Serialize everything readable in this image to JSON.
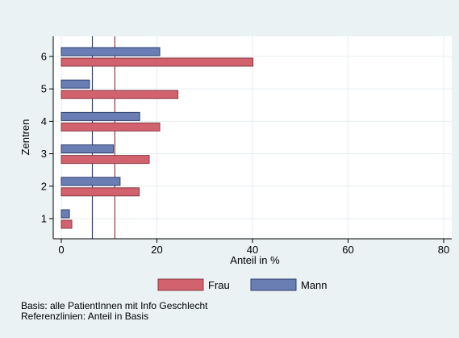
{
  "chart_data": {
    "type": "bar",
    "orientation": "horizontal",
    "categories": [
      "1",
      "2",
      "3",
      "4",
      "5",
      "6"
    ],
    "series": [
      {
        "name": "Mann",
        "values": [
          1.7,
          12.3,
          10.9,
          16.4,
          5.9,
          20.6
        ]
      },
      {
        "name": "Frau",
        "values": [
          2.2,
          16.3,
          18.4,
          20.6,
          24.4,
          40.1
        ]
      }
    ],
    "reference_lines": [
      {
        "series": "Mann",
        "value": 6.5
      },
      {
        "series": "Frau",
        "value": 11.2
      }
    ],
    "title": "",
    "xlabel": "Anteil in %",
    "ylabel": "Zentren",
    "xlim": [
      0,
      80
    ],
    "xticks": [
      0,
      20,
      40,
      60,
      80
    ],
    "grid": true,
    "legend_position": "bottom",
    "legend_order": [
      "Frau",
      "Mann"
    ],
    "colors": {
      "Frau": "#d1626e",
      "Mann": "#6a7eb4",
      "Frau_edge": "#8a3b45",
      "Mann_edge": "#2f3f6f",
      "background": "#eaf2f3",
      "plot_background": "#ffffff",
      "grid": "#e6eef0"
    }
  },
  "notes": {
    "line1": "Basis: alle PatientInnen mit Info Geschlecht",
    "line2": "Referenzlinien: Anteil in Basis"
  }
}
